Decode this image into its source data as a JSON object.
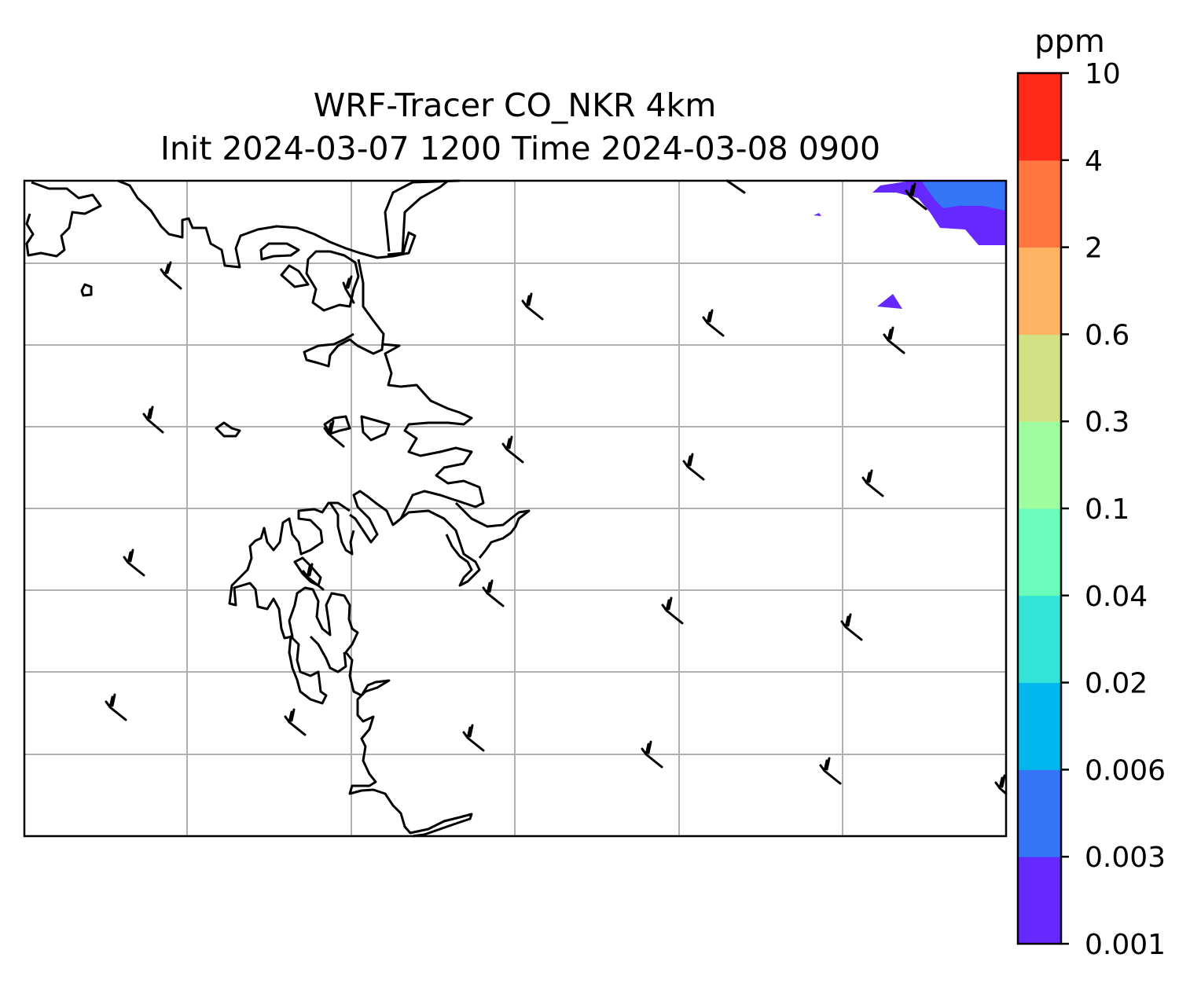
{
  "chart": {
    "title_line1": "WRF-Tracer CO_NKR 4km",
    "title_line2": "Init 2024-03-07 1200 Time 2024-03-08 0900"
  },
  "colorbar": {
    "unit": "ppm",
    "levels": [
      "0.001",
      "0.003",
      "0.006",
      "0.02",
      "0.04",
      "0.1",
      "0.3",
      "0.6",
      "2",
      "4",
      "10"
    ],
    "colors": [
      "#6528ff",
      "#3576f6",
      "#02b7ee",
      "#32e3d8",
      "#69fcbb",
      "#9dfd9f",
      "#d2e184",
      "#feb363",
      "#ff7640",
      "#ff2a17"
    ]
  },
  "map": {
    "shaded_field": "CO tracer concentration",
    "grid": true,
    "features": [
      "coastlines",
      "wind-barbs",
      "tracer-contours"
    ]
  }
}
